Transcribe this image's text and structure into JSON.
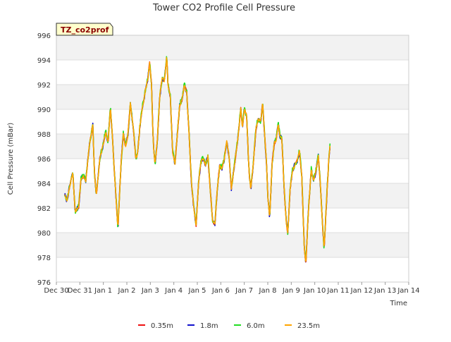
{
  "chart_data": {
    "type": "line",
    "title": "Tower CO2 Profile Cell Pressure",
    "xlabel": "Time",
    "ylabel": "Cell Pressure (mBar)",
    "badge": "TZ_co2prof",
    "ylim": [
      976,
      996
    ],
    "yticks": [
      976,
      978,
      980,
      982,
      984,
      986,
      988,
      990,
      992,
      994,
      996
    ],
    "xlim_days": [
      0,
      15
    ],
    "xticks": [
      {
        "day": 0,
        "label": "Dec 30"
      },
      {
        "day": 1,
        "label": "Dec 31"
      },
      {
        "day": 2,
        "label": "Jan 1"
      },
      {
        "day": 3,
        "label": "Jan 2"
      },
      {
        "day": 4,
        "label": "Jan 3"
      },
      {
        "day": 5,
        "label": "Jan 4"
      },
      {
        "day": 6,
        "label": "Jan 5"
      },
      {
        "day": 7,
        "label": "Jan 6"
      },
      {
        "day": 8,
        "label": "Jan 7"
      },
      {
        "day": 9,
        "label": "Jan 8"
      },
      {
        "day": 10,
        "label": "Jan 9"
      },
      {
        "day": 11,
        "label": "Jan 10"
      },
      {
        "day": 12,
        "label": "Jan 11"
      },
      {
        "day": 13,
        "label": "Jan 12"
      },
      {
        "day": 14,
        "label": "Jan 13"
      },
      {
        "day": 15,
        "label": "Jan 14"
      }
    ],
    "base_profile": [
      [
        0.35,
        983.1
      ],
      [
        0.45,
        982.6
      ],
      [
        0.55,
        983.6
      ],
      [
        0.7,
        984.9
      ],
      [
        0.8,
        981.7
      ],
      [
        0.95,
        982.1
      ],
      [
        1.05,
        984.4
      ],
      [
        1.15,
        984.6
      ],
      [
        1.25,
        984.2
      ],
      [
        1.4,
        987.0
      ],
      [
        1.55,
        988.8
      ],
      [
        1.62,
        984.9
      ],
      [
        1.7,
        983.0
      ],
      [
        1.85,
        986.0
      ],
      [
        2.0,
        987.2
      ],
      [
        2.1,
        988.2
      ],
      [
        2.2,
        987.3
      ],
      [
        2.3,
        990.1
      ],
      [
        2.38,
        988.0
      ],
      [
        2.45,
        985.5
      ],
      [
        2.55,
        982.5
      ],
      [
        2.62,
        980.3
      ],
      [
        2.75,
        985.5
      ],
      [
        2.85,
        988.0
      ],
      [
        2.95,
        987.0
      ],
      [
        3.05,
        988.0
      ],
      [
        3.15,
        990.5
      ],
      [
        3.3,
        988.0
      ],
      [
        3.38,
        986.0
      ],
      [
        3.45,
        986.3
      ],
      [
        3.55,
        988.5
      ],
      [
        3.65,
        990.0
      ],
      [
        3.8,
        991.6
      ],
      [
        3.9,
        992.5
      ],
      [
        3.97,
        993.8
      ],
      [
        4.05,
        992.0
      ],
      [
        4.12,
        987.5
      ],
      [
        4.2,
        985.5
      ],
      [
        4.3,
        987.5
      ],
      [
        4.4,
        991.0
      ],
      [
        4.5,
        992.5
      ],
      [
        4.6,
        992.3
      ],
      [
        4.7,
        994.3
      ],
      [
        4.75,
        992.0
      ],
      [
        4.85,
        991.0
      ],
      [
        4.95,
        986.5
      ],
      [
        5.05,
        985.6
      ],
      [
        5.15,
        988.0
      ],
      [
        5.25,
        990.3
      ],
      [
        5.35,
        990.8
      ],
      [
        5.45,
        992.0
      ],
      [
        5.55,
        991.3
      ],
      [
        5.65,
        988.0
      ],
      [
        5.75,
        984.0
      ],
      [
        5.85,
        982.0
      ],
      [
        5.95,
        980.6
      ],
      [
        6.05,
        984.0
      ],
      [
        6.15,
        985.7
      ],
      [
        6.25,
        986.0
      ],
      [
        6.35,
        985.5
      ],
      [
        6.45,
        986.2
      ],
      [
        6.55,
        983.5
      ],
      [
        6.65,
        981.0
      ],
      [
        6.75,
        980.7
      ],
      [
        6.85,
        983.5
      ],
      [
        6.95,
        985.4
      ],
      [
        7.05,
        985.2
      ],
      [
        7.15,
        986.0
      ],
      [
        7.25,
        987.4
      ],
      [
        7.35,
        986.2
      ],
      [
        7.45,
        983.6
      ],
      [
        7.55,
        985.0
      ],
      [
        7.65,
        986.5
      ],
      [
        7.75,
        988.0
      ],
      [
        7.85,
        990.1
      ],
      [
        7.92,
        988.5
      ],
      [
        8.0,
        990.0
      ],
      [
        8.1,
        989.5
      ],
      [
        8.2,
        985.0
      ],
      [
        8.28,
        983.5
      ],
      [
        8.38,
        985.5
      ],
      [
        8.5,
        988.5
      ],
      [
        8.6,
        989.2
      ],
      [
        8.7,
        989.0
      ],
      [
        8.78,
        990.5
      ],
      [
        8.88,
        987.5
      ],
      [
        8.95,
        985.5
      ],
      [
        9.0,
        983.0
      ],
      [
        9.08,
        981.2
      ],
      [
        9.18,
        985.5
      ],
      [
        9.28,
        987.3
      ],
      [
        9.35,
        987.5
      ],
      [
        9.45,
        988.8
      ],
      [
        9.52,
        987.8
      ],
      [
        9.6,
        987.6
      ],
      [
        9.7,
        983.5
      ],
      [
        9.78,
        981.0
      ],
      [
        9.85,
        979.9
      ],
      [
        9.95,
        983.5
      ],
      [
        10.05,
        985.0
      ],
      [
        10.15,
        985.5
      ],
      [
        10.25,
        985.8
      ],
      [
        10.35,
        986.6
      ],
      [
        10.45,
        984.5
      ],
      [
        10.55,
        979.0
      ],
      [
        10.62,
        977.4
      ],
      [
        10.72,
        981.5
      ],
      [
        10.85,
        985.1
      ],
      [
        10.95,
        984.2
      ],
      [
        11.05,
        985.0
      ],
      [
        11.15,
        986.2
      ],
      [
        11.22,
        984.5
      ],
      [
        11.32,
        981.0
      ],
      [
        11.4,
        978.6
      ],
      [
        11.5,
        982.5
      ],
      [
        11.6,
        986.0
      ],
      [
        11.65,
        987.0
      ]
    ],
    "series": [
      {
        "name": "0.35m",
        "color": "#ee1111",
        "offset": 0.0,
        "jitter": 0.15,
        "seed": 3
      },
      {
        "name": "1.8m",
        "color": "#1111cc",
        "offset": 0.0,
        "jitter": 0.2,
        "seed": 7
      },
      {
        "name": "6.0m",
        "color": "#22dd22",
        "offset": 0.05,
        "jitter": 0.22,
        "seed": 11
      },
      {
        "name": "23.5m",
        "color": "#ffa500",
        "offset": 0.0,
        "jitter": 0.1,
        "seed": 17
      }
    ],
    "legend": {
      "position": "bottom"
    }
  }
}
